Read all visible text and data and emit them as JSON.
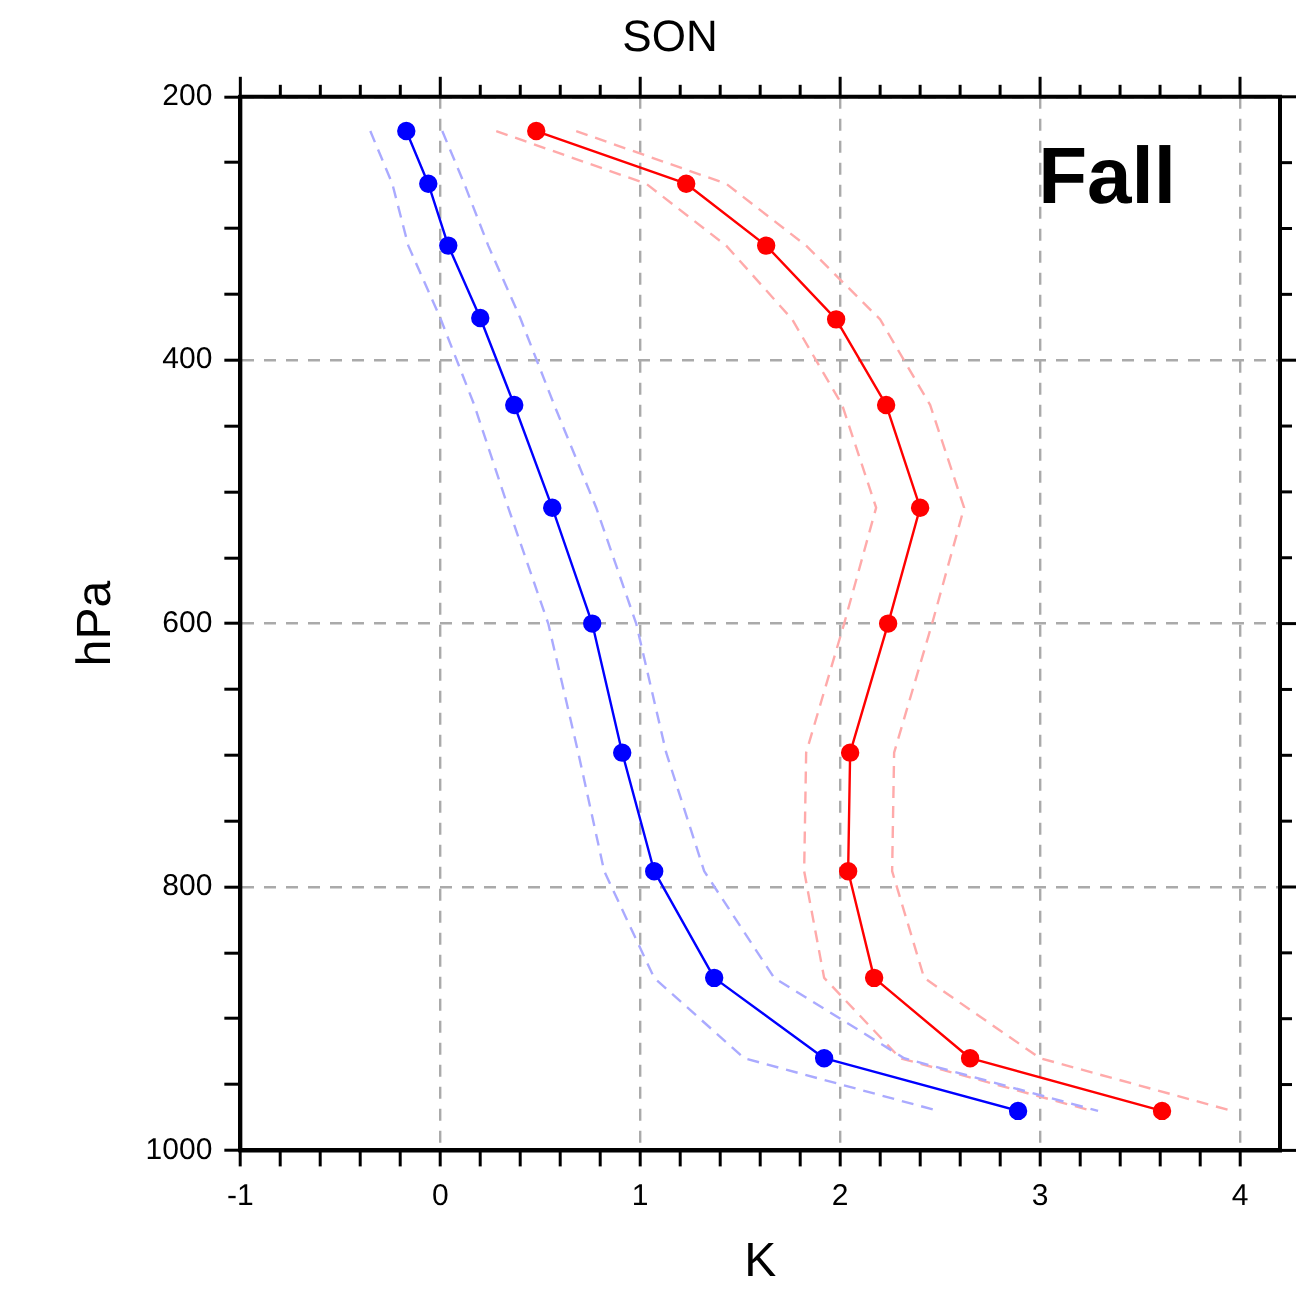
{
  "chart_data": {
    "type": "line",
    "title": "SON",
    "xlabel": "K",
    "ylabel": "hPa",
    "annotations": [
      "Fall"
    ],
    "xlim": [
      -1,
      4.2
    ],
    "ylim": [
      1000,
      200
    ],
    "xticks": [
      {
        "value": -1,
        "label": "-1"
      },
      {
        "value": -0.8,
        "label": null
      },
      {
        "value": -0.6,
        "label": null
      },
      {
        "value": -0.4,
        "label": null
      },
      {
        "value": -0.2,
        "label": null
      },
      0,
      {
        "value": 0.2,
        "label": null
      },
      {
        "value": 0.4,
        "label": null
      },
      {
        "value": 0.6,
        "label": null
      },
      {
        "value": 0.8,
        "label": null
      },
      1,
      {
        "value": 1.2,
        "label": null
      },
      {
        "value": 1.4,
        "label": null
      },
      {
        "value": 1.6,
        "label": null
      },
      {
        "value": 1.8,
        "label": null
      },
      2,
      {
        "value": 2.2,
        "label": null
      },
      {
        "value": 2.4,
        "label": null
      },
      {
        "value": 2.6,
        "label": null
      },
      {
        "value": 2.8,
        "label": null
      },
      3,
      {
        "value": 3.2,
        "label": null
      },
      {
        "value": 3.4,
        "label": null
      },
      {
        "value": 3.6,
        "label": null
      },
      {
        "value": 3.8,
        "label": null
      },
      4
    ],
    "yticks": [
      200,
      {
        "value": 250,
        "label": null
      },
      {
        "value": 300,
        "label": null
      },
      {
        "value": 350,
        "label": null
      },
      400,
      {
        "value": 450,
        "label": null
      },
      {
        "value": 500,
        "label": null
      },
      {
        "value": 550,
        "label": null
      },
      600,
      {
        "value": 650,
        "label": null
      },
      {
        "value": 700,
        "label": null
      },
      {
        "value": 750,
        "label": null
      },
      800,
      {
        "value": 850,
        "label": null
      },
      {
        "value": 900,
        "label": null
      },
      {
        "value": 950,
        "label": null
      },
      1000
    ],
    "grid": true,
    "marker": "circle",
    "line_style": "solid",
    "series": [
      {
        "color": "#aaaaff",
        "line_style": "dashed",
        "marker": "none",
        "x": [
          -0.35,
          -0.24,
          -0.16,
          0.0,
          0.17,
          0.34,
          0.54,
          0.69,
          0.82,
          1.07,
          1.52,
          2.49
        ],
        "values": [
          226,
          266,
          313,
          368,
          434,
          512,
          600,
          698,
          788,
          869,
          930,
          970
        ]
      },
      {
        "color": "#aaaaff",
        "line_style": "dashed",
        "marker": "none",
        "x": [
          0.01,
          0.12,
          0.24,
          0.4,
          0.57,
          0.78,
          0.98,
          1.13,
          1.32,
          1.67,
          2.32,
          3.29
        ],
        "values": [
          226,
          266,
          313,
          368,
          434,
          512,
          600,
          698,
          788,
          869,
          930,
          970
        ]
      },
      {
        "color": "#ffaaaa",
        "line_style": "dashed",
        "marker": "none",
        "x": [
          0.28,
          1.03,
          1.43,
          1.76,
          2.01,
          2.18,
          2.02,
          1.83,
          1.82,
          1.92,
          2.3,
          3.26
        ],
        "values": [
          226,
          266,
          313,
          369,
          434,
          512,
          600,
          698,
          788,
          869,
          930,
          970
        ]
      },
      {
        "color": "#ffaaaa",
        "line_style": "dashed",
        "marker": "none",
        "x": [
          0.68,
          1.43,
          1.83,
          2.2,
          2.45,
          2.62,
          2.46,
          2.27,
          2.26,
          2.42,
          3.0,
          3.96
        ],
        "values": [
          226,
          266,
          313,
          369,
          434,
          512,
          600,
          698,
          788,
          869,
          930,
          970
        ]
      },
      {
        "color": "#0000ff",
        "x": [
          -0.17,
          -0.06,
          0.04,
          0.2,
          0.37,
          0.56,
          0.76,
          0.91,
          1.07,
          1.37,
          1.92,
          2.89
        ],
        "values": [
          226,
          266,
          313,
          368,
          434,
          512,
          600,
          698,
          788,
          869,
          930,
          970
        ]
      },
      {
        "color": "#ff0000",
        "x": [
          0.48,
          1.23,
          1.63,
          1.98,
          2.23,
          2.4,
          2.24,
          2.05,
          2.04,
          2.17,
          2.65,
          3.61
        ],
        "values": [
          226,
          266,
          313,
          369,
          434,
          512,
          600,
          698,
          788,
          869,
          930,
          970
        ]
      }
    ]
  }
}
